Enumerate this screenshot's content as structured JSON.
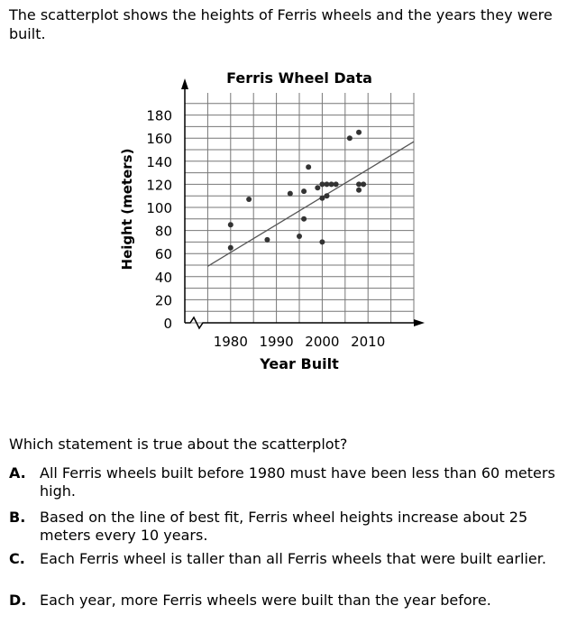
{
  "intro": "The scatterplot shows the heights of Ferris wheels and the years they were built.",
  "question": "Which statement is true about the scatterplot?",
  "choices": [
    {
      "letter": "A.",
      "text": "All Ferris wheels built before 1980 must have been less than 60 meters high."
    },
    {
      "letter": "B.",
      "text": "Based on the line of best fit, Ferris wheel heights increase about 25 meters every 10 years."
    },
    {
      "letter": "C.",
      "text": "Each Ferris wheel is taller than all Ferris wheels that were built earlier."
    },
    {
      "letter": "D.",
      "text": "Each year, more Ferris wheels were built than the year before."
    }
  ],
  "chart_data": {
    "type": "scatter",
    "title": "Ferris Wheel Data",
    "xlabel": "Year Built",
    "ylabel": "Height (meters)",
    "x_ticks": [
      1980,
      1990,
      2000,
      2010
    ],
    "y_ticks": [
      0,
      20,
      40,
      60,
      80,
      100,
      120,
      140,
      160,
      180
    ],
    "xlim": [
      1970,
      2020
    ],
    "ylim": [
      0,
      190
    ],
    "axis_break_x": true,
    "grid": true,
    "points": [
      {
        "x": 1980,
        "y": 85
      },
      {
        "x": 1980,
        "y": 65
      },
      {
        "x": 1984,
        "y": 107
      },
      {
        "x": 1988,
        "y": 72
      },
      {
        "x": 1993,
        "y": 112
      },
      {
        "x": 1995,
        "y": 75
      },
      {
        "x": 1996,
        "y": 90
      },
      {
        "x": 1996,
        "y": 114
      },
      {
        "x": 1997,
        "y": 135
      },
      {
        "x": 1999,
        "y": 117
      },
      {
        "x": 2000,
        "y": 120
      },
      {
        "x": 2000,
        "y": 70
      },
      {
        "x": 2000,
        "y": 108
      },
      {
        "x": 2001,
        "y": 120
      },
      {
        "x": 2001,
        "y": 110
      },
      {
        "x": 2002,
        "y": 120
      },
      {
        "x": 2003,
        "y": 120
      },
      {
        "x": 2006,
        "y": 160
      },
      {
        "x": 2008,
        "y": 165
      },
      {
        "x": 2008,
        "y": 120
      },
      {
        "x": 2008,
        "y": 115
      },
      {
        "x": 2009,
        "y": 120
      }
    ],
    "best_fit_line": {
      "x1": 1975,
      "y1": 49,
      "x2": 2020,
      "y2": 157
    }
  }
}
